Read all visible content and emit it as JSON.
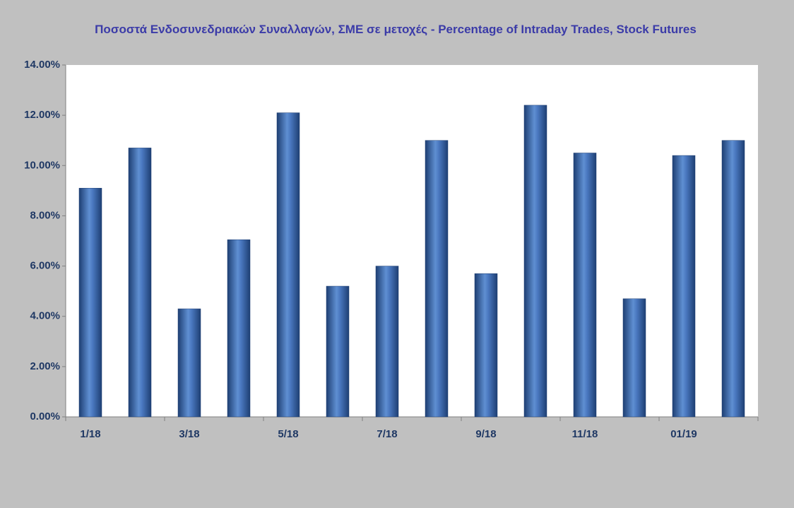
{
  "chart_data": {
    "type": "bar",
    "title": "Ποσοστά Ενδοσυνεδριακών Συναλλαγών, ΣΜΕ σε μετοχές - Percentage of Intraday Trades, Stock Futures",
    "categories": [
      "1/18",
      null,
      "3/18",
      null,
      "5/18",
      null,
      "7/18",
      null,
      "9/18",
      null,
      "11/18",
      null,
      "01/19",
      null
    ],
    "values": [
      9.1,
      10.7,
      4.3,
      7.05,
      12.1,
      5.2,
      6.0,
      11.0,
      5.7,
      12.4,
      10.5,
      4.7,
      10.4,
      11.0
    ],
    "color": "#4a78c0",
    "ylim": [
      0,
      14
    ],
    "yticks": [
      {
        "value": 0,
        "label": "0.00%"
      },
      {
        "value": 2,
        "label": "2.00%"
      },
      {
        "value": 4,
        "label": "4.00%"
      },
      {
        "value": 6,
        "label": "6.00%"
      },
      {
        "value": 8,
        "label": "8.00%"
      },
      {
        "value": 10,
        "label": "10.00%"
      },
      {
        "value": 12,
        "label": "12.00%"
      },
      {
        "value": 14,
        "label": "14.00%"
      }
    ],
    "grid": false
  }
}
